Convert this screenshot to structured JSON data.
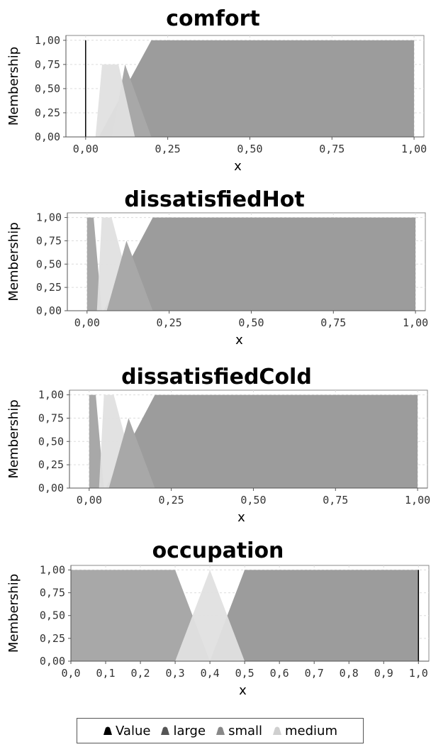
{
  "colors": {
    "value": "#000000",
    "large": "#9c9c9c",
    "small": "#a8a8a8",
    "medium": "#e0e0e0",
    "plot_bg": "#ffffff",
    "grid": "#dcdcdc"
  },
  "legend": {
    "placement": "bottom",
    "items": [
      {
        "label": "Value",
        "key": "value"
      },
      {
        "label": "large",
        "key": "large"
      },
      {
        "label": "small",
        "key": "small"
      },
      {
        "label": "medium",
        "key": "medium"
      }
    ]
  },
  "chart_data": [
    {
      "type": "area",
      "title": "comfort",
      "xlabel": "x",
      "ylabel": "Membership",
      "xlim": [
        -0.06,
        1.03
      ],
      "ylim": [
        0,
        1.05
      ],
      "xticks": [
        0.0,
        0.25,
        0.5,
        0.75,
        1.0
      ],
      "xtick_labels": [
        "0,00",
        "0,25",
        "0,50",
        "0,75",
        "1,00"
      ],
      "yticks": [
        0.0,
        0.25,
        0.5,
        0.75,
        1.0
      ],
      "ytick_labels": [
        "0,00",
        "0,25",
        "0,50",
        "0,75",
        "1,00"
      ],
      "grid": true,
      "value": 0.0,
      "series": [
        {
          "name": "large",
          "color_key": "large",
          "points": [
            [
              0.04,
              0
            ],
            [
              0.2,
              1
            ],
            [
              1.0,
              1
            ],
            [
              1.0,
              0
            ]
          ]
        },
        {
          "name": "small",
          "color_key": "small",
          "points": [
            [
              0.08,
              0
            ],
            [
              0.12,
              0.75
            ],
            [
              0.2,
              0
            ]
          ]
        },
        {
          "name": "medium",
          "color_key": "medium",
          "points": [
            [
              0.03,
              0
            ],
            [
              0.05,
              0.75
            ],
            [
              0.1,
              0.75
            ],
            [
              0.15,
              0
            ]
          ]
        }
      ]
    },
    {
      "type": "area",
      "title": "dissatisfiedHot",
      "xlabel": "x",
      "ylabel": "Membership",
      "xlim": [
        -0.06,
        1.03
      ],
      "ylim": [
        0,
        1.05
      ],
      "xticks": [
        0.0,
        0.25,
        0.5,
        0.75,
        1.0
      ],
      "xtick_labels": [
        "0,00",
        "0,25",
        "0,50",
        "0,75",
        "1,00"
      ],
      "yticks": [
        0.0,
        0.25,
        0.5,
        0.75,
        1.0
      ],
      "ytick_labels": [
        "0,00",
        "0,25",
        "0,50",
        "0,75",
        "1,00"
      ],
      "grid": true,
      "series": [
        {
          "name": "large",
          "color_key": "large",
          "points": [
            [
              0.05,
              0
            ],
            [
              0.2,
              1
            ],
            [
              1.0,
              1
            ],
            [
              1.0,
              0
            ]
          ]
        },
        {
          "name": "small",
          "color_key": "small",
          "points": [
            [
              0.0,
              0
            ],
            [
              0.0,
              1
            ],
            [
              0.02,
              1
            ],
            [
              0.045,
              0
            ]
          ]
        },
        {
          "name": "medium",
          "color_key": "medium",
          "points": [
            [
              0.03,
              0
            ],
            [
              0.045,
              1
            ],
            [
              0.075,
              1
            ],
            [
              0.15,
              0
            ]
          ]
        },
        {
          "name": "small",
          "color_key": "small",
          "points": [
            [
              0.06,
              0
            ],
            [
              0.12,
              0.75
            ],
            [
              0.2,
              0
            ]
          ]
        }
      ]
    },
    {
      "type": "area",
      "title": "dissatisfiedCold",
      "xlabel": "x",
      "ylabel": "Membership",
      "xlim": [
        -0.06,
        1.03
      ],
      "ylim": [
        0,
        1.05
      ],
      "xticks": [
        0.0,
        0.25,
        0.5,
        0.75,
        1.0
      ],
      "xtick_labels": [
        "0,00",
        "0,25",
        "0,50",
        "0,75",
        "1,00"
      ],
      "yticks": [
        0.0,
        0.25,
        0.5,
        0.75,
        1.0
      ],
      "ytick_labels": [
        "0,00",
        "0,25",
        "0,50",
        "0,75",
        "1,00"
      ],
      "grid": true,
      "series": [
        {
          "name": "large",
          "color_key": "large",
          "points": [
            [
              0.05,
              0
            ],
            [
              0.2,
              1
            ],
            [
              1.0,
              1
            ],
            [
              1.0,
              0
            ]
          ]
        },
        {
          "name": "small",
          "color_key": "small",
          "points": [
            [
              0.0,
              0
            ],
            [
              0.0,
              1
            ],
            [
              0.02,
              1
            ],
            [
              0.045,
              0
            ]
          ]
        },
        {
          "name": "medium",
          "color_key": "medium",
          "points": [
            [
              0.03,
              0
            ],
            [
              0.045,
              1
            ],
            [
              0.075,
              1
            ],
            [
              0.15,
              0
            ]
          ]
        },
        {
          "name": "small",
          "color_key": "small",
          "points": [
            [
              0.06,
              0
            ],
            [
              0.12,
              0.75
            ],
            [
              0.2,
              0
            ]
          ]
        }
      ]
    },
    {
      "type": "area",
      "title": "occupation",
      "xlabel": "x",
      "ylabel": "Membership",
      "xlim": [
        0.0,
        1.03
      ],
      "ylim": [
        0,
        1.05
      ],
      "xticks": [
        0.0,
        0.1,
        0.2,
        0.3,
        0.4,
        0.5,
        0.6,
        0.7,
        0.8,
        0.9,
        1.0
      ],
      "xtick_labels": [
        "0,0",
        "0,1",
        "0,2",
        "0,3",
        "0,4",
        "0,5",
        "0,6",
        "0,7",
        "0,8",
        "0,9",
        "1,0"
      ],
      "yticks": [
        0.0,
        0.25,
        0.5,
        0.75,
        1.0
      ],
      "ytick_labels": [
        "0,00",
        "0,25",
        "0,50",
        "0,75",
        "1,00"
      ],
      "grid": true,
      "value": 1.0,
      "series": [
        {
          "name": "small",
          "color_key": "small",
          "points": [
            [
              0.0,
              0
            ],
            [
              0.0,
              1
            ],
            [
              0.3,
              1
            ],
            [
              0.4,
              0
            ]
          ]
        },
        {
          "name": "large",
          "color_key": "large",
          "points": [
            [
              0.4,
              0
            ],
            [
              0.5,
              1
            ],
            [
              1.0,
              1
            ],
            [
              1.0,
              0
            ]
          ]
        },
        {
          "name": "medium",
          "color_key": "medium",
          "points": [
            [
              0.3,
              0
            ],
            [
              0.4,
              1
            ],
            [
              0.5,
              0
            ]
          ]
        }
      ]
    }
  ]
}
